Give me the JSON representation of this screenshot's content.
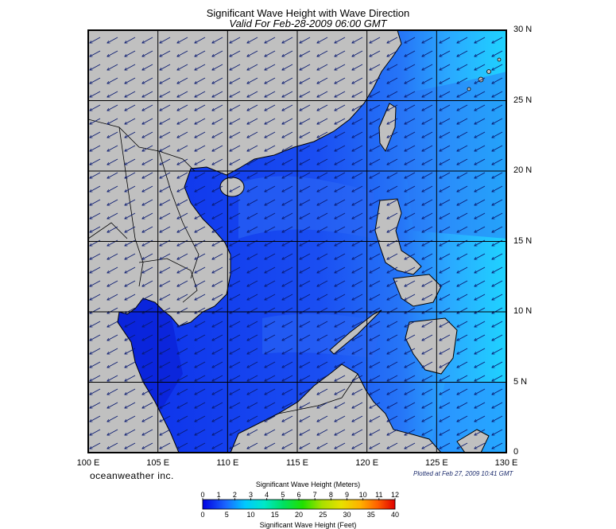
{
  "title": "Significant Wave Height with Wave Direction",
  "subtitle": "Valid For Feb-28-2009 06:00 GMT",
  "latitude_labels": [
    "30 N",
    "25 N",
    "20 N",
    "15 N",
    "10 N",
    "5 N",
    "0"
  ],
  "longitude_labels": [
    "100 E",
    "105 E",
    "110 E",
    "115 E",
    "120 E",
    "125 E",
    "130 E"
  ],
  "lat_range": [
    0,
    30
  ],
  "lon_range": [
    100,
    130
  ],
  "grid": true,
  "brand": "oceanweather inc.",
  "plotted": "Plotted at Feb 27, 2009 10:41 GMT",
  "colorbar": {
    "title_meters": "Significant Wave Height (Meters)",
    "title_feet": "Significant Wave Height (Feet)",
    "meters_ticks": [
      "0",
      "1",
      "2",
      "3",
      "4",
      "5",
      "6",
      "7",
      "8",
      "9",
      "10",
      "11",
      "12"
    ],
    "feet_ticks": [
      "0",
      "5",
      "10",
      "15",
      "20",
      "25",
      "30",
      "35",
      "40"
    ]
  },
  "colors": {
    "land": "#c0c0c0",
    "deep_blue": "#0a2ae8",
    "mid_blue": "#1e5cf0",
    "light_blue": "#2f8cff",
    "cyan": "#1fd0ff",
    "grid": "#000000"
  }
}
